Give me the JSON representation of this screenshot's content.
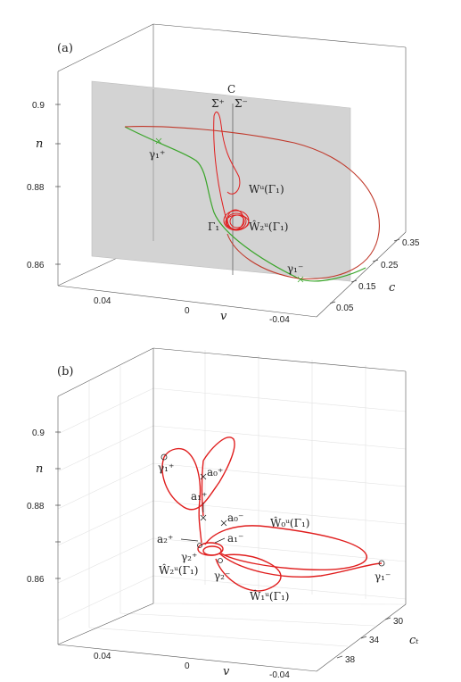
{
  "chart_data": [
    {
      "type": "line",
      "panel_label": "(a)",
      "axes": {
        "n": {
          "label": "n",
          "ticks": [
            "0.86",
            "0.88",
            "0.9"
          ]
        },
        "v": {
          "label": "v",
          "ticks": [
            "0.04",
            "0",
            "-0.04"
          ]
        },
        "c": {
          "label": "c",
          "ticks": [
            "0.05",
            "0.15",
            "0.25",
            "0.35"
          ]
        }
      },
      "annotations": {
        "plane": "C",
        "sigma_plus": "Σ⁺",
        "sigma_minus": "Σ⁻",
        "unstable_manifold": "Wᵘ(Γ₁)",
        "gamma_orbit": "Γ₁",
        "w2_manifold": "Ŵ₂ᵘ(Γ₁)",
        "gamma1_plus": "γ₁⁺",
        "gamma1_minus": "γ₁⁻"
      },
      "series": [
        {
          "role": "orbit",
          "color": "#e01e1e"
        },
        {
          "role": "connecting-orbit",
          "color": "#3aa52a"
        }
      ],
      "plane_color": "#d3d3d3"
    },
    {
      "type": "line",
      "panel_label": "(b)",
      "axes": {
        "n": {
          "label": "n",
          "ticks": [
            "0.86",
            "0.88",
            "0.9"
          ]
        },
        "v": {
          "label": "v",
          "ticks": [
            "0.04",
            "0",
            "-0.04"
          ]
        },
        "ct": {
          "label": "cₜ",
          "ticks": [
            "30",
            "34",
            "38"
          ]
        }
      },
      "annotations": {
        "gamma1_plus": "γ₁⁺",
        "a0_plus": "a₀⁺",
        "a1_plus": "a₁⁺",
        "a0_minus": "a₀⁻",
        "w0_manifold": "Ŵ₀ᵘ(Γ₁)",
        "a2_plus": "a₂⁺",
        "a1_minus": "a₁⁻",
        "gamma2_plus": "γ₂⁺",
        "w2_manifold": "Ŵ₂ᵘ(Γ₁)",
        "gamma2_minus": "γ₂⁻",
        "gamma1_minus": "γ₁⁻",
        "w1_manifold": "Ŵ₁ᵘ(Γ₁)"
      },
      "series": [
        {
          "role": "manifold-curve",
          "color": "#e01e1e"
        }
      ]
    }
  ]
}
